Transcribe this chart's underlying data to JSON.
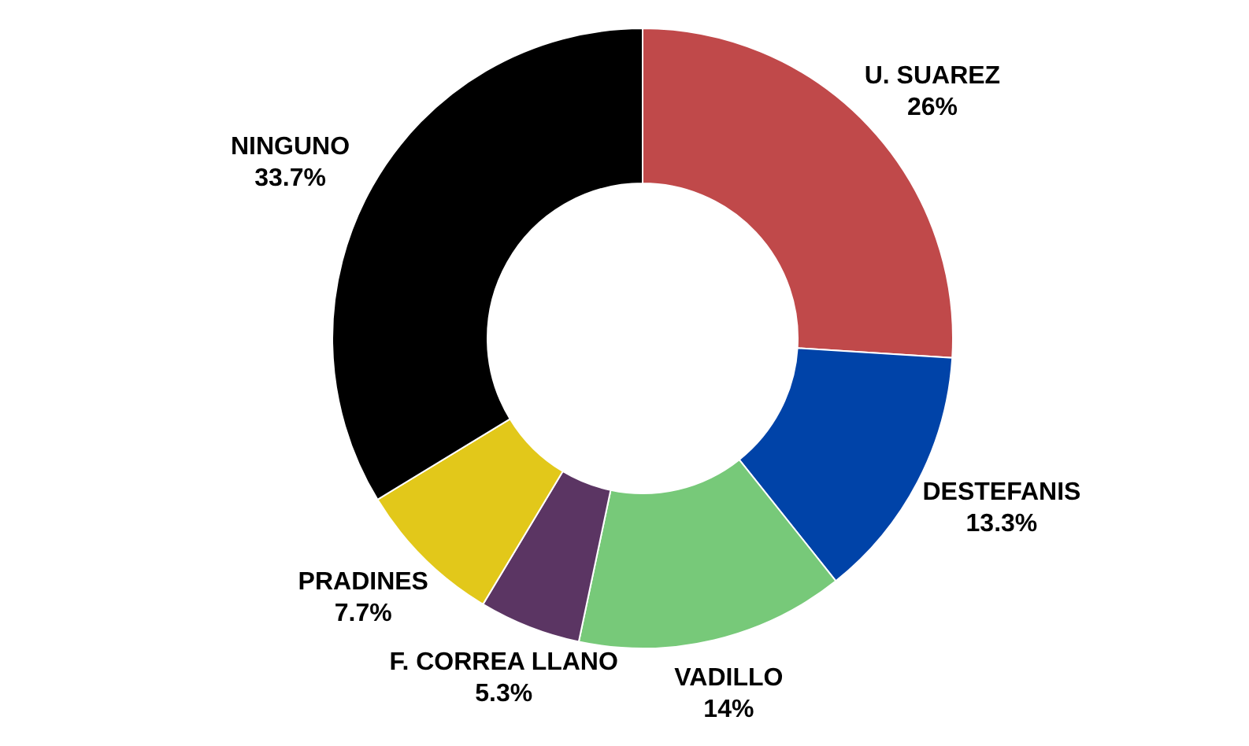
{
  "chart_data": {
    "type": "donut",
    "categories": [
      "U. SUAREZ",
      "DESTEFANIS",
      "VADILLO",
      "F. CORREA LLANO",
      "PRADINES",
      "NINGUNO"
    ],
    "values": [
      26,
      13.3,
      14,
      5.3,
      7.7,
      33.7
    ],
    "colors": [
      "#c0494a",
      "#0043a8",
      "#77c979",
      "#5b3563",
      "#e2c81a",
      "#000000"
    ],
    "value_labels": [
      "26%",
      "13.3%",
      "14%",
      "5.3%",
      "7.7%",
      "33.7%"
    ]
  }
}
